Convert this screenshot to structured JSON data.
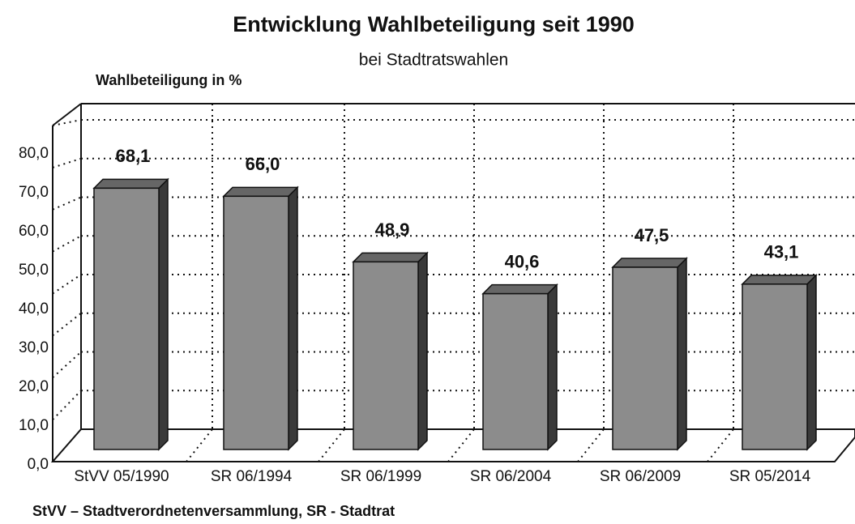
{
  "chart_data": {
    "type": "bar3d",
    "title": "Entwicklung Wahlbeteiligung seit 1990",
    "subtitle": "bei Stadtratswahlen",
    "y_label": "Wahlbeteiligung in %",
    "footnote": "StVV – Stadtverordnetenversammlung, SR - Stadtrat",
    "categories": [
      "StVV 05/1990",
      "SR 06/1994",
      "SR 06/1999",
      "SR 06/2004",
      "SR 06/2009",
      "SR 05/2014"
    ],
    "values": [
      68.1,
      66.0,
      48.9,
      40.6,
      47.5,
      43.1
    ],
    "value_labels": [
      "68,1",
      "66,0",
      "48,9",
      "40,6",
      "47,5",
      "43,1"
    ],
    "color": "#8c8c8c",
    "ylim": [
      0,
      80
    ],
    "yticks": [
      {
        "value": 0,
        "label": "0,0"
      },
      {
        "value": 10,
        "label": "10,0"
      },
      {
        "value": 20,
        "label": "20,0"
      },
      {
        "value": 30,
        "label": "30,0"
      },
      {
        "value": 40,
        "label": "40,0"
      },
      {
        "value": 50,
        "label": "50,0"
      },
      {
        "value": 60,
        "label": "60,0"
      },
      {
        "value": 70,
        "label": "70,0"
      },
      {
        "value": 80,
        "label": "80,0"
      }
    ],
    "grid": true
  }
}
